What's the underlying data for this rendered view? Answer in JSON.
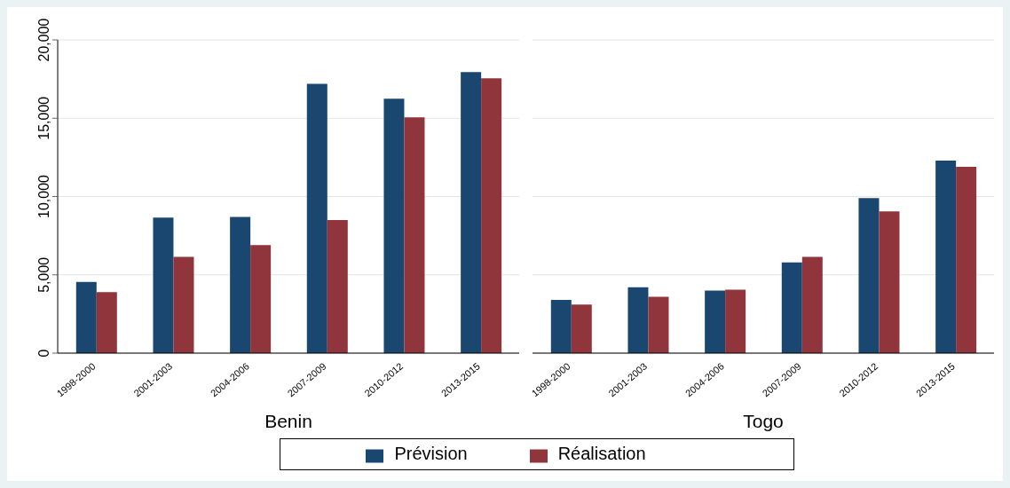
{
  "chart_data": [
    {
      "type": "bar",
      "xlabel": "Benin",
      "categories": [
        "1998-2000",
        "2001-2003",
        "2004-2006",
        "2007-2009",
        "2010-2012",
        "2013-2015"
      ],
      "series": [
        {
          "name": "Prévision",
          "color": "#1a476f",
          "values": [
            4550,
            8650,
            8700,
            17200,
            16250,
            17950
          ]
        },
        {
          "name": "Réalisation",
          "color": "#90353b",
          "values": [
            3900,
            6150,
            6900,
            8500,
            15050,
            17550
          ]
        }
      ],
      "ylim": [
        0,
        20000
      ],
      "yticks": [
        {
          "value": 0,
          "label": "0"
        },
        {
          "value": 5000,
          "label": "5,000"
        },
        {
          "value": 10000,
          "label": "10,000"
        },
        {
          "value": 15000,
          "label": "15,000"
        },
        {
          "value": 20000,
          "label": "20,000"
        }
      ],
      "grid": "y",
      "legend": "bottom"
    },
    {
      "type": "bar",
      "xlabel": "Togo",
      "categories": [
        "1998-2000",
        "2001-2003",
        "2004-2006",
        "2007-2009",
        "2010-2012",
        "2013-2015"
      ],
      "series": [
        {
          "color": "#1a476f",
          "values": [
            3400,
            4200,
            4000,
            5800,
            9900,
            12300
          ]
        },
        {
          "color": "#90353b",
          "values": [
            3100,
            3600,
            4050,
            6150,
            9050,
            11900
          ]
        }
      ],
      "ylim": [
        0,
        20000
      ],
      "yticks": [
        0,
        5000,
        10000,
        15000,
        20000
      ],
      "grid": "y",
      "tick_labels": "x"
    }
  ]
}
